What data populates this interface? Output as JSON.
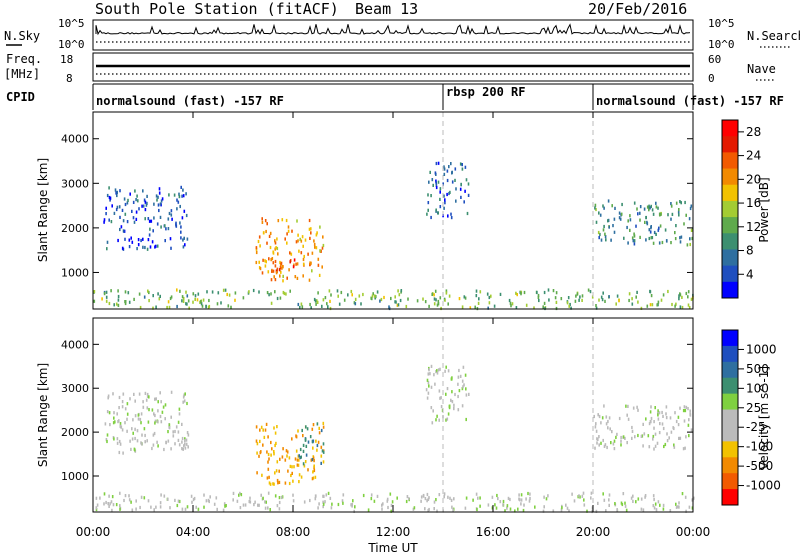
{
  "header": {
    "station": "South Pole Station (fitACF)",
    "beam": "Beam 13",
    "date": "20/Feb/2016"
  },
  "top_panels": {
    "nsky_label": "N.Sky",
    "nsky_ticks": [
      "10^5",
      "10^0"
    ],
    "nsearch_label": "N.Search",
    "nsearch_ticks": [
      "10^5",
      "10^0"
    ],
    "freq_label": "Freq.",
    "freq_unit": "[MHz]",
    "freq_ticks": [
      "18",
      "8"
    ],
    "nave_label": "Nave",
    "nave_ticks": [
      "60",
      "0"
    ],
    "cpid_label": "CPID",
    "cpid_segments": [
      {
        "label": "normalsound (fast) -157 RF",
        "start_hour": 0,
        "end_hour": 14
      },
      {
        "label": "rbsp 200 RF",
        "start_hour": 14,
        "end_hour": 20
      },
      {
        "label": "normalsound (fast) -157 RF",
        "start_hour": 20,
        "end_hour": 24
      }
    ]
  },
  "colors": {
    "power_scale": [
      "#0000ff",
      "#1f4fbf",
      "#2e6fa0",
      "#3c8f70",
      "#5faa4c",
      "#a3cc33",
      "#f2c200",
      "#f28a00",
      "#f25a00",
      "#e41a00",
      "#ff0000"
    ],
    "velocity_scale": [
      "#ff0000",
      "#f25a00",
      "#f28a00",
      "#f2c200",
      "#bbbbbb",
      "#bbbbbb",
      "#7fd040",
      "#3c8f70",
      "#2e6fa0",
      "#1f4fbf",
      "#0000ff"
    ],
    "dashed_line": "#bbbbbb"
  },
  "chart_data": [
    {
      "type": "heatmap",
      "name": "power",
      "ylabel": "Slant Range [km]",
      "yticks": [
        "1000",
        "2000",
        "3000",
        "4000"
      ],
      "ylim": [
        180,
        4600
      ],
      "xlim": [
        0,
        24
      ],
      "colorbar_label": "Power [dB]",
      "colorbar_ticks": [
        "4",
        "8",
        "12",
        "16",
        "20",
        "24",
        "28"
      ],
      "colorbar_range": [
        0,
        30
      ],
      "features": [
        {
          "hours": [
            0.4,
            3.8
          ],
          "range_km": [
            1500,
            2900
          ],
          "value": 4
        },
        {
          "hours": [
            6.5,
            9.2
          ],
          "range_km": [
            800,
            2200
          ],
          "value": 20
        },
        {
          "hours": [
            7.0,
            8.2
          ],
          "range_km": [
            850,
            1300
          ],
          "value": 26
        },
        {
          "hours": [
            13.3,
            15.0
          ],
          "range_km": [
            2200,
            3500
          ],
          "value": 5
        },
        {
          "hours": [
            20.0,
            24.0
          ],
          "range_km": [
            1600,
            2600
          ],
          "value": 9
        },
        {
          "hours": [
            0,
            24
          ],
          "range_km": [
            180,
            600
          ],
          "value": 12
        }
      ],
      "dashed_lines_hours": [
        14,
        20
      ]
    },
    {
      "type": "heatmap",
      "name": "velocity",
      "ylabel": "Slant Range [km]",
      "yticks": [
        "1000",
        "2000",
        "3000",
        "4000"
      ],
      "ylim": [
        180,
        4600
      ],
      "xlim": [
        0,
        24
      ],
      "xticks": [
        "00:00",
        "04:00",
        "08:00",
        "12:00",
        "16:00",
        "20:00",
        "00:00"
      ],
      "xlabel": "Time UT",
      "colorbar_label": "Velocity [m s^-1]",
      "colorbar_ticks": [
        "-1000",
        "-500",
        "-100",
        "-25",
        "25",
        "100",
        "500",
        "1000"
      ],
      "features": [
        {
          "hours": [
            0.4,
            3.8
          ],
          "range_km": [
            1500,
            2900
          ],
          "value": 0
        },
        {
          "hours": [
            6.5,
            9.2
          ],
          "range_km": [
            800,
            2200
          ],
          "value": -600
        },
        {
          "hours": [
            8.2,
            9.2
          ],
          "range_km": [
            1200,
            2200
          ],
          "value": 600
        },
        {
          "hours": [
            13.3,
            15.0
          ],
          "range_km": [
            2200,
            3500
          ],
          "value": 50
        },
        {
          "hours": [
            20.0,
            24.0
          ],
          "range_km": [
            1600,
            2600
          ],
          "value": 0
        },
        {
          "hours": [
            0,
            24
          ],
          "range_km": [
            180,
            600
          ],
          "value": 20
        }
      ],
      "dashed_lines_hours": [
        14,
        20
      ]
    }
  ]
}
